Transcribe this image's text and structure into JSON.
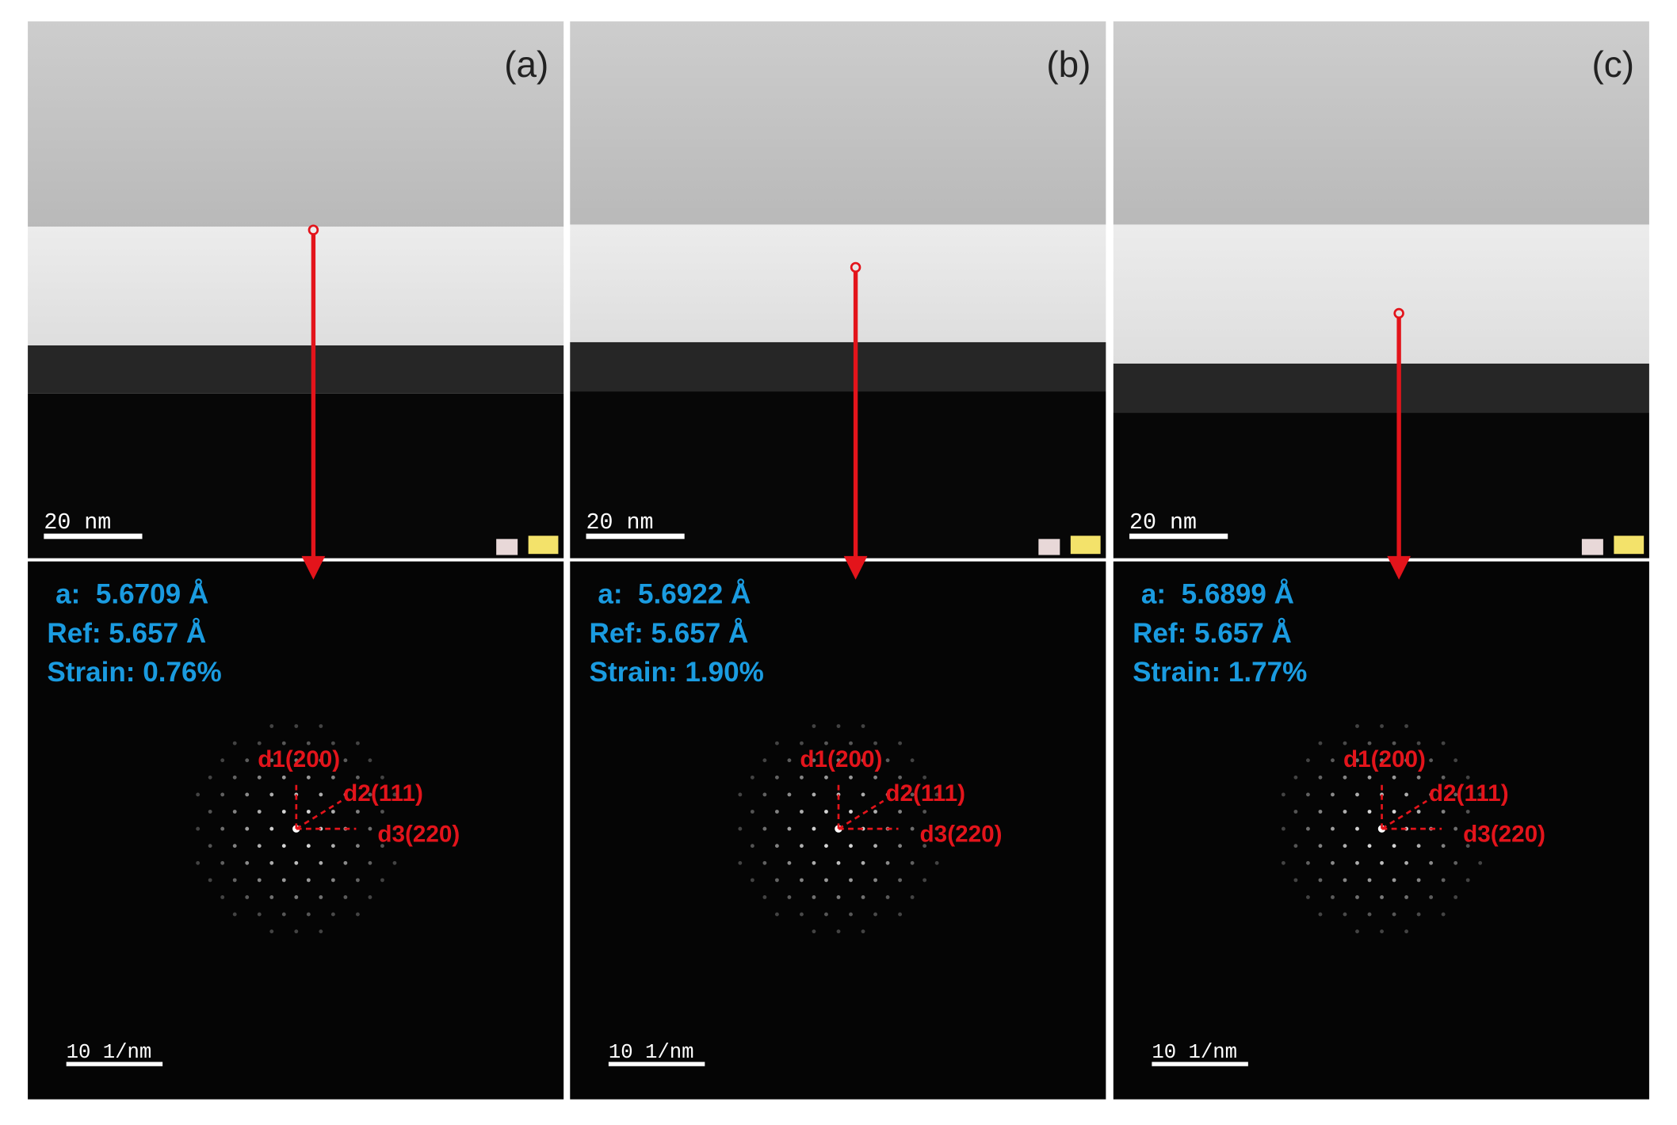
{
  "panels": [
    {
      "label": "(a)",
      "scale_bar_top": "20 nm",
      "lattice": "a:  5.6709 Å",
      "reference": "Ref: 5.657 Å",
      "strain": "Strain: 0.76%",
      "spots": [
        "d1(200)",
        "d2(111)",
        "d3(220)"
      ],
      "scale_bar_bottom": "10 1/nm"
    },
    {
      "label": "(b)",
      "scale_bar_top": "20 nm",
      "lattice": "a:  5.6922 Å",
      "reference": "Ref: 5.657 Å",
      "strain": "Strain: 1.90%",
      "spots": [
        "d1(200)",
        "d2(111)",
        "d3(220)"
      ],
      "scale_bar_bottom": "10 1/nm"
    },
    {
      "label": "(c)",
      "scale_bar_top": "20 nm",
      "lattice": "a:  5.6899 Å",
      "reference": "Ref: 5.657 Å",
      "strain": "Strain: 1.77%",
      "spots": [
        "d1(200)",
        "d2(111)",
        "d3(220)"
      ],
      "scale_bar_bottom": "10 1/nm"
    }
  ]
}
